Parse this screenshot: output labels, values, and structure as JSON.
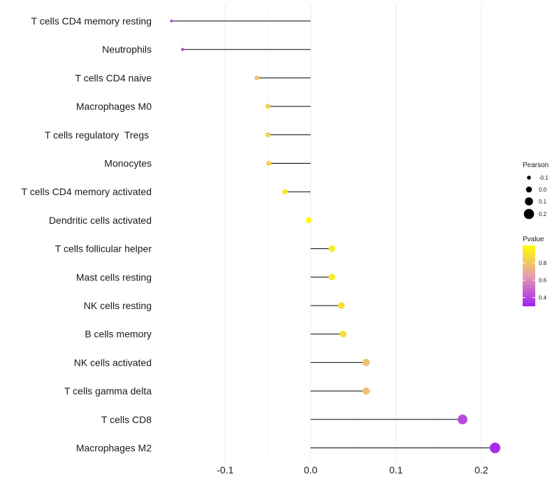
{
  "chart_data": {
    "type": "lollipop",
    "title": "",
    "xlabel": "",
    "ylabel": "",
    "xlim": [
      -0.165,
      0.235
    ],
    "x_ticks": [
      -0.1,
      0.0,
      0.1,
      0.2
    ],
    "x_tick_labels": [
      "-0.1",
      "0.0",
      "0.1",
      "0.2"
    ],
    "grid": true,
    "legend_position": "right",
    "categories": [
      "T cells CD4 memory resting",
      "Neutrophils",
      "T cells CD4 naive",
      "Macrophages M0",
      "T cells regulatory  Tregs ",
      "Monocytes",
      "T cells CD4 memory activated",
      "Dendritic cells activated",
      "T cells follicular helper",
      "Mast cells resting",
      "NK cells resting",
      "B cells memory",
      "NK cells activated",
      "T cells gamma delta",
      "T cells CD8",
      "Macrophages M2"
    ],
    "values": [
      -0.163,
      -0.15,
      -0.063,
      -0.05,
      -0.05,
      -0.049,
      -0.03,
      -0.002,
      0.025,
      0.025,
      0.036,
      0.038,
      0.065,
      0.065,
      0.178,
      0.216
    ],
    "pvalues": [
      0.35,
      0.38,
      0.78,
      0.84,
      0.84,
      0.85,
      0.92,
      0.99,
      0.93,
      0.93,
      0.89,
      0.88,
      0.77,
      0.77,
      0.42,
      0.33
    ],
    "size_legend": {
      "title": "Pearson",
      "values": [
        -0.1,
        0.0,
        0.1,
        0.2
      ],
      "labels": [
        "-0.1",
        "0.0",
        "0.1",
        "0.2"
      ]
    },
    "color_legend": {
      "title": "Pvalue",
      "range": [
        0.3,
        1.0
      ],
      "ticks": [
        0.4,
        0.6,
        0.8
      ],
      "labels": [
        "0.4",
        "0.6",
        "0.8"
      ],
      "low_color": "#A020F0",
      "high_color": "#FFFF00"
    }
  }
}
